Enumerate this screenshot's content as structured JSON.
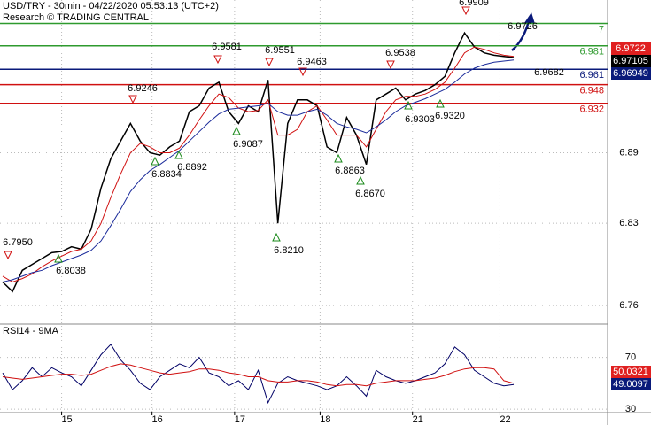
{
  "chart_data": {
    "type": "line",
    "title": "USD/TRY - 30min - 04/22/2020 05:53:13 (UTC+2)",
    "subtitle": "Research © TRADING CENTRAL",
    "ylim": [
      6.745,
      7.02
    ],
    "yticks": [
      6.76,
      6.83,
      6.89
    ],
    "xlim": [
      0,
      52
    ],
    "xticks": [
      {
        "value": 6,
        "label": "15"
      },
      {
        "value": 15.2,
        "label": "16"
      },
      {
        "value": 23.6,
        "label": "17"
      },
      {
        "value": 32.3,
        "label": "18"
      },
      {
        "value": 41.7,
        "label": "21"
      },
      {
        "value": 50.6,
        "label": "22"
      }
    ],
    "grid": true,
    "series": [
      {
        "name": "Price",
        "color": "#000000",
        "values": [
          6.78,
          6.772,
          6.79,
          6.795,
          6.8,
          6.805,
          6.806,
          6.81,
          6.808,
          6.825,
          6.86,
          6.885,
          6.9,
          6.915,
          6.9,
          6.89,
          6.888,
          6.895,
          6.9,
          6.925,
          6.93,
          6.945,
          6.95,
          6.925,
          6.915,
          6.93,
          6.925,
          6.952,
          6.83,
          6.915,
          6.935,
          6.935,
          6.93,
          6.895,
          6.89,
          6.92,
          6.905,
          6.88,
          6.935,
          6.94,
          6.945,
          6.935,
          6.94,
          6.943,
          6.948,
          6.955,
          6.975,
          6.992,
          6.98,
          6.975,
          6.973,
          6.972,
          6.971
        ]
      },
      {
        "name": "MA fast",
        "color": "#d01010",
        "values": [
          6.785,
          6.78,
          6.783,
          6.787,
          6.793,
          6.798,
          6.802,
          6.806,
          6.808,
          6.815,
          6.83,
          6.852,
          6.872,
          6.89,
          6.898,
          6.895,
          6.89,
          6.89,
          6.894,
          6.905,
          6.918,
          6.93,
          6.94,
          6.937,
          6.928,
          6.925,
          6.926,
          6.935,
          6.905,
          6.905,
          6.91,
          6.925,
          6.93,
          6.918,
          6.905,
          6.905,
          6.905,
          6.895,
          6.91,
          6.925,
          6.935,
          6.938,
          6.938,
          6.94,
          6.944,
          6.95,
          6.962,
          6.975,
          6.98,
          6.978,
          6.975,
          6.973,
          6.972
        ]
      },
      {
        "name": "MA slow",
        "color": "#1a2a9a",
        "values": [
          6.78,
          6.782,
          6.785,
          6.788,
          6.79,
          6.794,
          6.797,
          6.8,
          6.803,
          6.807,
          6.815,
          6.828,
          6.842,
          6.857,
          6.867,
          6.875,
          6.88,
          6.886,
          6.892,
          6.9,
          6.908,
          6.916,
          6.923,
          6.927,
          6.928,
          6.929,
          6.93,
          6.932,
          6.925,
          6.922,
          6.922,
          6.925,
          6.927,
          6.922,
          6.915,
          6.912,
          6.91,
          6.907,
          6.912,
          6.918,
          6.925,
          6.93,
          6.933,
          6.936,
          6.94,
          6.944,
          6.95,
          6.957,
          6.962,
          6.965,
          6.967,
          6.968,
          6.969
        ]
      }
    ],
    "levels": [
      {
        "value": 7,
        "color": "#2e9a2e"
      },
      {
        "value": 6.981,
        "color": "#2e9a2e"
      },
      {
        "value": 6.961,
        "color": "#0a1a7a"
      },
      {
        "value": 6.948,
        "color": "#d01010"
      },
      {
        "value": 6.932,
        "color": "#d01010"
      }
    ],
    "price_boxes": [
      {
        "value": 6.9722,
        "color": "#e02020"
      },
      {
        "value": 6.97105,
        "color": "#000000"
      },
      {
        "value": 6.96949,
        "color": "#0a1a7a"
      }
    ],
    "annotations": [
      "6.7950",
      "6.8038",
      "6.9246",
      "6.8834",
      "6.8892",
      "6.9581",
      "6.9087",
      "6.9551",
      "6.8210",
      "6.9463",
      "6.8863",
      "6.8670",
      "6.9538",
      "6.9303",
      "6.9320",
      "6.9909",
      "6.9682",
      "6.9726"
    ],
    "rsi": {
      "title": "RSI14 - 9MA",
      "ylim": [
        28,
        95
      ],
      "yticks": [
        30,
        70
      ],
      "series": [
        {
          "name": "RSI14",
          "color": "#000066",
          "values": [
            58,
            45,
            52,
            62,
            55,
            62,
            58,
            55,
            48,
            60,
            72,
            80,
            68,
            60,
            50,
            45,
            55,
            60,
            65,
            62,
            70,
            58,
            55,
            48,
            52,
            45,
            60,
            35,
            50,
            55,
            52,
            50,
            48,
            45,
            48,
            55,
            48,
            40,
            60,
            55,
            52,
            50,
            52,
            55,
            58,
            65,
            78,
            72,
            60,
            55,
            50,
            48,
            49
          ]
        },
        {
          "name": "9MA",
          "color": "#d01010",
          "values": [
            55,
            54,
            53,
            54,
            55,
            56,
            57,
            57,
            56,
            57,
            60,
            63,
            65,
            64,
            62,
            60,
            58,
            57,
            58,
            59,
            61,
            61,
            60,
            58,
            57,
            55,
            55,
            52,
            51,
            51,
            52,
            52,
            51,
            49,
            48,
            49,
            49,
            48,
            50,
            51,
            52,
            52,
            52,
            53,
            54,
            56,
            59,
            61,
            62,
            62,
            61,
            52,
            50
          ]
        }
      ],
      "boxes": [
        {
          "value": 50.0321,
          "color": "#e02020"
        },
        {
          "value": 49.0097,
          "color": "#0a1a7a"
        }
      ]
    }
  }
}
